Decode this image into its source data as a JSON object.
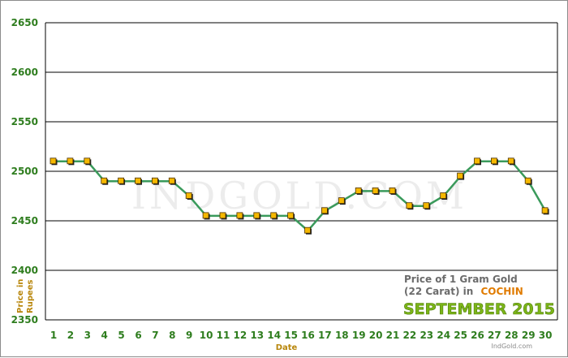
{
  "chart_data": {
    "type": "line",
    "title_line1": "Price of 1 Gram Gold",
    "title_line2_prefix": "(22 Carat) in",
    "city": "COCHIN",
    "period": "SEPTEMBER 2015",
    "xlabel": "Date",
    "ylabel_line1": "Price in",
    "ylabel_line2": "Rupees",
    "watermark": "INDGOLD.COM",
    "source": "IndGold.com",
    "x": [
      1,
      2,
      3,
      4,
      5,
      6,
      7,
      8,
      9,
      10,
      11,
      12,
      13,
      14,
      15,
      16,
      17,
      18,
      19,
      20,
      21,
      22,
      23,
      24,
      25,
      26,
      27,
      28,
      29,
      30
    ],
    "values": [
      2510,
      2510,
      2510,
      2490,
      2490,
      2490,
      2490,
      2490,
      2475,
      2455,
      2455,
      2455,
      2455,
      2455,
      2455,
      2440,
      2460,
      2470,
      2480,
      2480,
      2480,
      2465,
      2465,
      2475,
      2495,
      2510,
      2510,
      2510,
      2490,
      2460
    ],
    "ylim": [
      2350,
      2650
    ],
    "yticks": [
      2350,
      2400,
      2450,
      2500,
      2550,
      2600,
      2650
    ],
    "grid": true,
    "colors": {
      "line": "#3a9a5b",
      "marker_fill": "#f5b800",
      "marker_stroke": "#4a3000",
      "grid": "#000000",
      "tick_text": "#2e7d1e"
    }
  }
}
